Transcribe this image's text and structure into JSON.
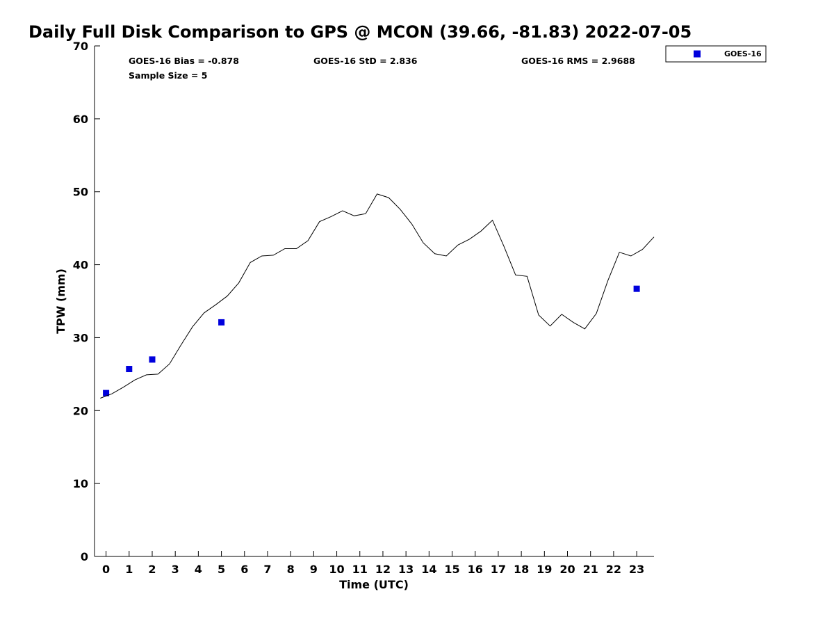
{
  "chart_data": {
    "type": "scatter",
    "title": "Daily Full Disk Comparison to GPS @ MCON (39.66, -81.83) 2022-07-05",
    "xlabel": "Time (UTC)",
    "ylabel": "TPW (mm)",
    "xlim": [
      -0.5,
      23.75
    ],
    "ylim": [
      0,
      70
    ],
    "x_ticks": [
      0,
      1,
      2,
      3,
      4,
      5,
      6,
      7,
      8,
      9,
      10,
      11,
      12,
      13,
      14,
      15,
      16,
      17,
      18,
      19,
      20,
      21,
      22,
      23
    ],
    "y_ticks": [
      0,
      10,
      20,
      30,
      40,
      50,
      60,
      70
    ],
    "grid": false,
    "legend_position": "top-right",
    "stats": {
      "bias": "GOES-16 Bias = -0.878",
      "sample": "Sample Size = 5",
      "std": "GOES-16 StD = 2.836",
      "rms": "GOES-16 RMS = 2.9688"
    },
    "series": [
      {
        "name": "GOES-16",
        "marker": "square",
        "color": "#0000dd",
        "x": [
          0.0,
          1.0,
          2.0,
          5.0,
          23.0
        ],
        "y": [
          22.4,
          25.7,
          27.0,
          32.1,
          36.7
        ]
      },
      {
        "marker": "line",
        "color": "#000000",
        "x": [
          -0.25,
          0.25,
          0.75,
          1.25,
          1.75,
          2.25,
          2.75,
          3.25,
          3.75,
          4.25,
          4.75,
          5.25,
          5.75,
          6.25,
          6.75,
          7.25,
          7.75,
          8.25,
          8.75,
          9.25,
          9.75,
          10.25,
          10.75,
          11.25,
          11.75,
          12.25,
          12.75,
          13.25,
          13.75,
          14.25,
          14.75,
          15.25,
          15.75,
          16.25,
          16.75,
          17.25,
          17.75,
          18.25,
          18.75,
          19.25,
          19.75,
          20.25,
          20.75,
          21.25,
          21.75,
          22.25,
          22.75,
          23.25,
          23.75
        ],
        "y": [
          21.7,
          22.3,
          23.2,
          24.2,
          24.9,
          25.0,
          26.4,
          29.0,
          31.5,
          33.4,
          34.5,
          35.7,
          37.5,
          40.3,
          41.2,
          41.3,
          42.2,
          42.2,
          43.3,
          45.9,
          46.6,
          47.4,
          46.7,
          47.0,
          49.7,
          49.2,
          47.6,
          45.6,
          43.0,
          41.5,
          41.2,
          42.7,
          43.5,
          44.6,
          46.1,
          42.5,
          38.6,
          38.4,
          33.1,
          31.6,
          33.2,
          32.1,
          31.2,
          33.3,
          37.8,
          41.7,
          41.2,
          42.1,
          43.8
        ]
      }
    ]
  }
}
